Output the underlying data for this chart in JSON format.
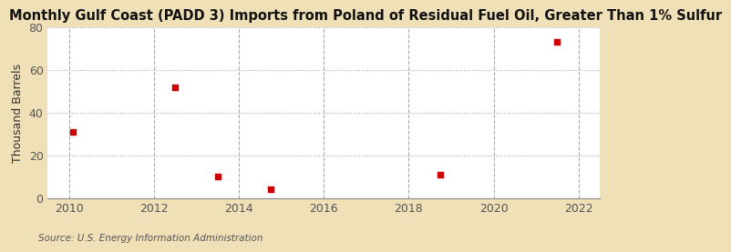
{
  "title": "Monthly Gulf Coast (PADD 3) Imports from Poland of Residual Fuel Oil, Greater Than 1% Sulfur",
  "ylabel": "Thousand Barrels",
  "source": "Source: U.S. Energy Information Administration",
  "fig_background_color": "#f0e0b8",
  "plot_background_color": "#ffffff",
  "x_data": [
    2010.1,
    2012.5,
    2013.5,
    2014.75,
    2018.75,
    2021.5
  ],
  "y_data": [
    31,
    52,
    10,
    4,
    11,
    73
  ],
  "marker_color": "#cc0000",
  "marker_size": 18,
  "xlim": [
    2009.5,
    2022.5
  ],
  "ylim": [
    0,
    80
  ],
  "xticks": [
    2010,
    2012,
    2014,
    2016,
    2018,
    2020,
    2022
  ],
  "yticks": [
    0,
    20,
    40,
    60,
    80
  ],
  "title_fontsize": 10.5,
  "axis_fontsize": 9,
  "source_fontsize": 7.5
}
